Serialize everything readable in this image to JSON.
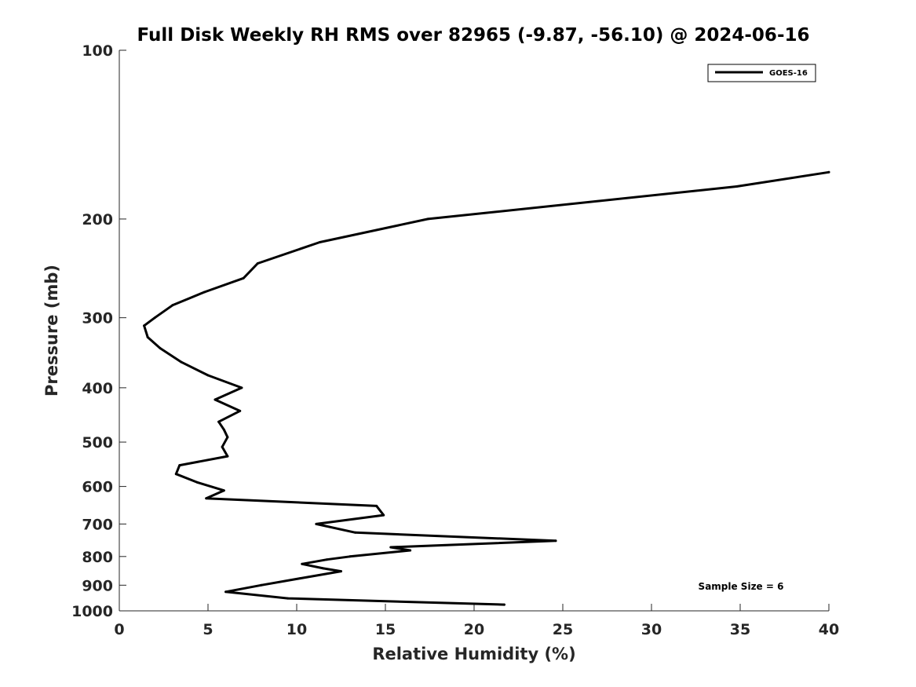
{
  "chart_data": {
    "type": "line",
    "title": "Full Disk Weekly RH RMS over 82965 (-9.87, -56.10) @ 2024-06-16",
    "xlabel": "Relative Humidity (%)",
    "ylabel": "Pressure (mb)",
    "xlim": [
      0,
      40
    ],
    "ylim": [
      1000,
      100
    ],
    "y_scale": "log",
    "x_ticks": [
      0,
      5,
      10,
      15,
      20,
      25,
      30,
      35,
      40
    ],
    "x_tick_labels": [
      "0",
      "5",
      "10",
      "15",
      "20",
      "25",
      "30",
      "35",
      "40"
    ],
    "y_ticks": [
      100,
      200,
      300,
      400,
      500,
      600,
      700,
      800,
      900,
      1000
    ],
    "y_tick_labels": [
      "100",
      "200",
      "300",
      "400",
      "500",
      "600",
      "700",
      "800",
      "900",
      "1000"
    ],
    "grid": false,
    "legend_position": "top-right",
    "annotation": "Sample Size = 6",
    "series": [
      {
        "name": "GOES-16",
        "color": "#000000",
        "points": [
          [
            21.7,
            975
          ],
          [
            9.5,
            950
          ],
          [
            6.0,
            925
          ],
          [
            8.0,
            900
          ],
          [
            10.2,
            875
          ],
          [
            12.5,
            850
          ],
          [
            11.5,
            840
          ],
          [
            10.3,
            825
          ],
          [
            11.7,
            810
          ],
          [
            13.0,
            800
          ],
          [
            16.4,
            780
          ],
          [
            15.3,
            770
          ],
          [
            24.6,
            750
          ],
          [
            13.3,
            725
          ],
          [
            11.1,
            700
          ],
          [
            14.9,
            675
          ],
          [
            14.5,
            650
          ],
          [
            4.9,
            630
          ],
          [
            5.9,
            610
          ],
          [
            4.4,
            590
          ],
          [
            3.2,
            570
          ],
          [
            3.4,
            550
          ],
          [
            6.1,
            530
          ],
          [
            5.8,
            510
          ],
          [
            6.1,
            490
          ],
          [
            5.9,
            475
          ],
          [
            5.6,
            460
          ],
          [
            6.8,
            440
          ],
          [
            5.4,
            420
          ],
          [
            6.9,
            400
          ],
          [
            5.0,
            380
          ],
          [
            3.5,
            360
          ],
          [
            2.3,
            340
          ],
          [
            1.6,
            325
          ],
          [
            1.4,
            310
          ],
          [
            2.0,
            300
          ],
          [
            3.0,
            285
          ],
          [
            4.8,
            270
          ],
          [
            7.0,
            255
          ],
          [
            7.8,
            240
          ],
          [
            11.3,
            220
          ],
          [
            17.4,
            200
          ],
          [
            34.8,
            175
          ],
          [
            40.0,
            165
          ]
        ]
      }
    ]
  }
}
